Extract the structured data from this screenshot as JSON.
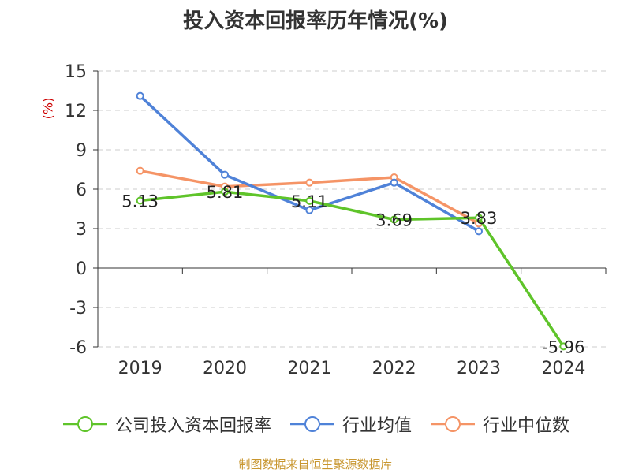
{
  "chart_data": {
    "type": "line",
    "title": "投入资本回报率历年情况(%)",
    "ylabel": "(%)",
    "categories": [
      "2019",
      "2020",
      "2021",
      "2022",
      "2023",
      "2024"
    ],
    "ylim": [
      -6,
      15
    ],
    "yticks": [
      15,
      12,
      9,
      6,
      3,
      0,
      -3,
      -6
    ],
    "ytick_labels": [
      "15",
      "12",
      "9",
      "6",
      "3",
      "0",
      "-3",
      "-6"
    ],
    "grid": "horizontal-dashed",
    "legend_position": "bottom",
    "series": [
      {
        "name": "公司投入资本回报率",
        "color": "#5fc42a",
        "values": [
          5.13,
          5.81,
          5.11,
          3.69,
          3.83,
          -5.96
        ],
        "data_labels": [
          "5.13",
          "5.81",
          "5.11",
          "3.69",
          "3.83",
          "-5.96"
        ]
      },
      {
        "name": "行业均值",
        "color": "#4f82d8",
        "values": [
          13.1,
          7.1,
          4.4,
          6.5,
          2.8,
          null
        ]
      },
      {
        "name": "行业中位数",
        "color": "#f59466",
        "values": [
          7.4,
          6.2,
          6.5,
          6.9,
          3.4,
          null
        ]
      }
    ]
  },
  "footer": {
    "source": "制图数据来自恒生聚源数据库"
  }
}
